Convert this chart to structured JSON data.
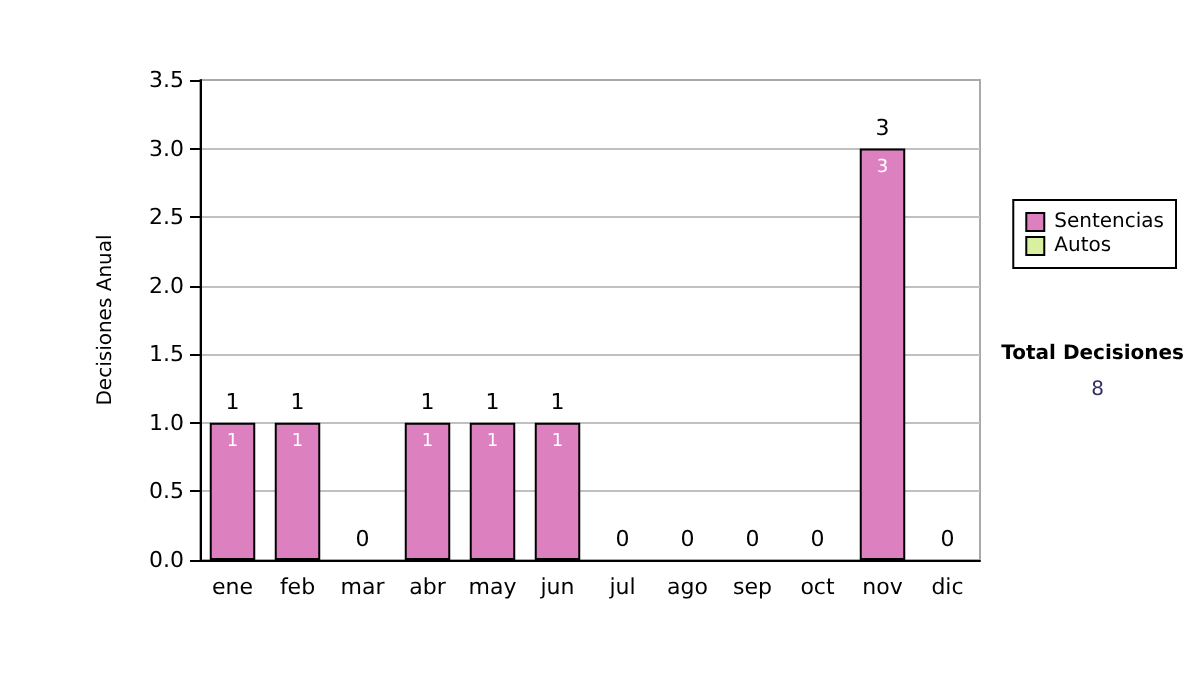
{
  "chart_data": {
    "type": "bar",
    "stacked": true,
    "ylabel": "Decisiones Anual",
    "categories": [
      "ene",
      "feb",
      "mar",
      "abr",
      "may",
      "jun",
      "jul",
      "ago",
      "sep",
      "oct",
      "nov",
      "dic"
    ],
    "series": [
      {
        "name": "Sentencias",
        "color": "#dd80c0",
        "values": [
          1,
          1,
          0,
          1,
          1,
          1,
          0,
          0,
          0,
          0,
          3,
          0
        ],
        "value_labels": [
          "1",
          "1",
          null,
          "1",
          "1",
          "1",
          null,
          null,
          null,
          null,
          "3",
          null
        ]
      },
      {
        "name": "Autos",
        "color": "#d8f0a0",
        "values": [
          0,
          0,
          0,
          0,
          0,
          0,
          0,
          0,
          0,
          0,
          0,
          0
        ]
      }
    ],
    "totals": [
      "1",
      "1",
      "0",
      "1",
      "1",
      "1",
      "0",
      "0",
      "0",
      "0",
      "3",
      "0"
    ],
    "ylim": [
      0,
      3.5
    ],
    "yticks": [
      {
        "value": 0,
        "label": "0.0"
      },
      {
        "value": 0.5,
        "label": "0.5"
      },
      {
        "value": 1,
        "label": "1.0"
      },
      {
        "value": 1.5,
        "label": "1.5"
      },
      {
        "value": 2,
        "label": "2.0"
      },
      {
        "value": 2.5,
        "label": "2.5"
      },
      {
        "value": 3,
        "label": "3.0"
      },
      {
        "value": 3.5,
        "label": "3.5"
      }
    ],
    "grid": "y",
    "legend": "right",
    "annotations": [
      "Total Decisiones",
      "8"
    ]
  }
}
